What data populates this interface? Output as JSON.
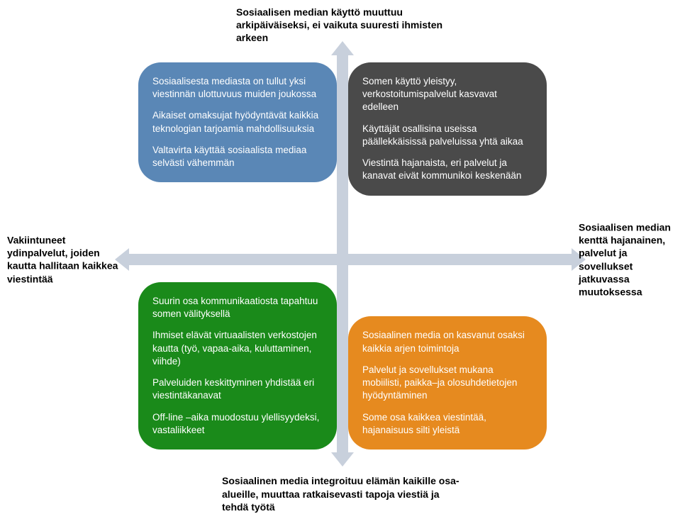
{
  "type": "quadrant-diagram",
  "background_color": "#ffffff",
  "arrow_color": "#c8d0dc",
  "label_color": "#000000",
  "label_fontsize": 14,
  "label_fontweight": "bold",
  "quad_text_color": "#ffffff",
  "quad_fontsize": 13.5,
  "quad_border_radius": 32,
  "axes": {
    "top": "Sosiaalisen median käyttö muuttuu arkipäiväiseksi, ei vaikuta suuresti ihmisten arkeen",
    "bottom": "Sosiaalinen media integroituu elämän kaikille osa-alueille, muuttaa ratkaisevasti tapoja viestiä ja tehdä työtä",
    "left": "Vakiintuneet ydinpalvelut, joiden kautta hallitaan kaikkea viestintää",
    "right": "Sosiaalisen median kenttä hajanainen, palvelut ja sovellukset jatkuvassa muutoksessa"
  },
  "quadrants": {
    "top_left": {
      "color": "#5a87b6",
      "paragraphs": [
        "Sosiaalisesta mediasta on tullut yksi viestinnän ulottuvuus muiden joukossa",
        "Aikaiset omaksujat hyödyntävät kaikkia teknologian tarjoamia mahdollisuuksia",
        "Valtavirta käyttää sosiaalista mediaa selvästi vähemmän"
      ]
    },
    "top_right": {
      "color": "#4a4a4a",
      "paragraphs": [
        "Somen käyttö yleistyy, verkostoitumispalvelut kasvavat edelleen",
        "Käyttäjät osallisina useissa päällekkäisissä palveluissa yhtä aikaa",
        "Viestintä hajanaista, eri palvelut ja kanavat eivät kommunikoi keskenään"
      ]
    },
    "bottom_left": {
      "color": "#1a8a1a",
      "paragraphs": [
        "Suurin osa kommunikaatiosta tapahtuu somen välityksellä",
        "Ihmiset elävät virtuaalisten verkostojen kautta (työ, vapaa-aika, kuluttaminen, viihde)",
        "Palveluiden keskittyminen yhdistää eri viestintäkanavat",
        "Off-line –aika muodostuu ylellisyydeksi, vastaliikkeet"
      ]
    },
    "bottom_right": {
      "color": "#e68a1f",
      "paragraphs": [
        "Sosiaalinen media on kasvanut osaksi kaikkia arjen toimintoja",
        "Palvelut ja sovellukset mukana mobiilisti, paikka–ja olosuhdetietojen hyödyntäminen",
        "Some osa kaikkea viestintää, hajanaisuus silti yleistä"
      ]
    }
  }
}
